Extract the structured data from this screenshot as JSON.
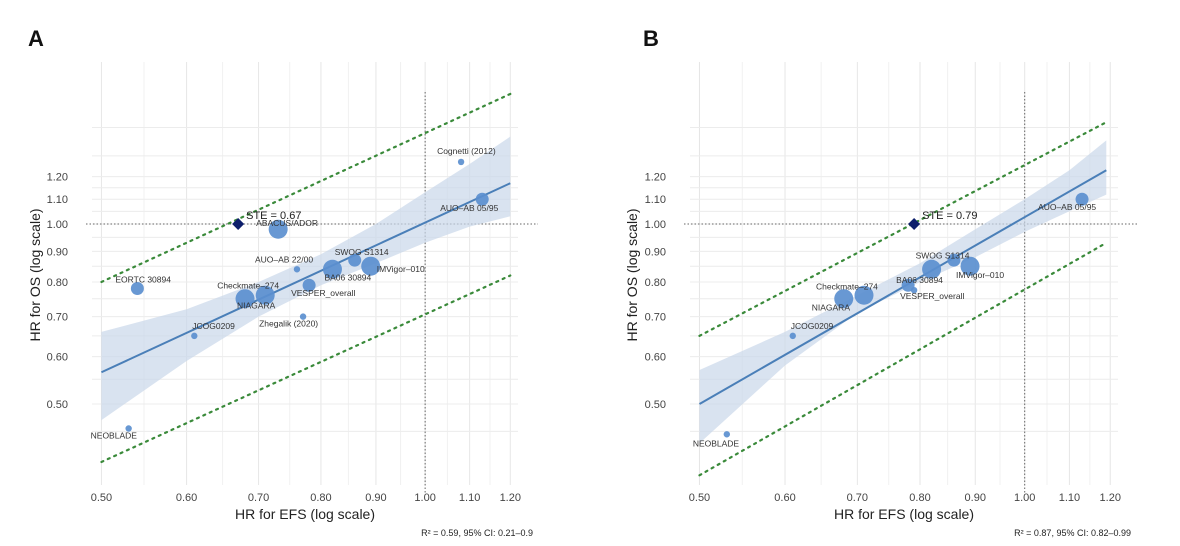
{
  "panels": [
    {
      "letter": "A",
      "caption": "R² = 0.59, 95% CI: 0.21–0.9"
    },
    {
      "letter": "B",
      "caption": "R² = 0.87, 95% CI: 0.82–0.99"
    }
  ],
  "chart_data": [
    {
      "type": "scatter",
      "panel": "A",
      "title": "",
      "xlabel": "HR for EFS (log scale)",
      "ylabel": "HR for OS (log scale)",
      "x_scale": "log",
      "y_scale": "log",
      "xlim": [
        0.49,
        1.22
      ],
      "ylim": [
        0.42,
        1.55
      ],
      "x_ticks": [
        "0.50",
        "0.60",
        "0.70",
        "0.80",
        "0.90",
        "1.00",
        "1.10",
        "1.20"
      ],
      "y_ticks": [
        "0.50",
        "0.60",
        "0.70",
        "0.80",
        "0.90",
        "1.00",
        "1.10",
        "1.20"
      ],
      "grid": true,
      "reference_lines": {
        "x": 1.0,
        "y": 1.0
      },
      "points": [
        {
          "label": "EORTC 30894",
          "x": 0.54,
          "y": 0.78,
          "size": 2
        },
        {
          "label": "JCOG0209",
          "x": 0.61,
          "y": 0.65,
          "size": 1
        },
        {
          "label": "NEOBLADE",
          "x": 0.53,
          "y": 0.455,
          "size": 1
        },
        {
          "label": "NIAGARA",
          "x": 0.68,
          "y": 0.75,
          "size": 3
        },
        {
          "label": "Checkmate–274",
          "x": 0.71,
          "y": 0.76,
          "size": 3
        },
        {
          "label": "ABACUS/ADOR",
          "x": 0.73,
          "y": 0.98,
          "size": 3
        },
        {
          "label": "AUO–AB 22/00",
          "x": 0.76,
          "y": 0.84,
          "size": 1
        },
        {
          "label": "Zhegalik (2020)",
          "x": 0.77,
          "y": 0.7,
          "size": 1
        },
        {
          "label": "VESPER_overall",
          "x": 0.78,
          "y": 0.79,
          "size": 2
        },
        {
          "label": "BA06 30894",
          "x": 0.82,
          "y": 0.84,
          "size": 3
        },
        {
          "label": "SWOG S1314",
          "x": 0.86,
          "y": 0.87,
          "size": 2
        },
        {
          "label": "IMVigor–010",
          "x": 0.89,
          "y": 0.85,
          "size": 3
        },
        {
          "label": "Cognetti (2012)",
          "x": 1.08,
          "y": 1.27,
          "size": 1
        },
        {
          "label": "AUO–AB 05/95",
          "x": 1.13,
          "y": 1.1,
          "size": 2
        }
      ],
      "ste": {
        "label": "STE = 0.67",
        "x": 0.67,
        "y": 1.0
      },
      "regression": {
        "line": [
          [
            0.5,
            0.565
          ],
          [
            1.2,
            1.17
          ]
        ],
        "ci_upper": [
          [
            0.5,
            0.66
          ],
          [
            0.6,
            0.72
          ],
          [
            0.7,
            0.8
          ],
          [
            0.8,
            0.89
          ],
          [
            0.9,
            1.0
          ],
          [
            1.0,
            1.13
          ],
          [
            1.1,
            1.26
          ],
          [
            1.2,
            1.4
          ]
        ],
        "ci_lower": [
          [
            0.5,
            0.47
          ],
          [
            0.6,
            0.59
          ],
          [
            0.7,
            0.7
          ],
          [
            0.8,
            0.79
          ],
          [
            0.9,
            0.86
          ],
          [
            1.0,
            0.93
          ],
          [
            1.1,
            0.99
          ],
          [
            1.2,
            1.03
          ]
        ],
        "pi_upper": [
          [
            0.5,
            0.8
          ],
          [
            1.2,
            1.65
          ]
        ],
        "pi_lower": [
          [
            0.5,
            0.4
          ],
          [
            1.2,
            0.82
          ]
        ]
      },
      "caption": "R² = 0.59, 95% CI: 0.21–0.9"
    },
    {
      "type": "scatter",
      "panel": "B",
      "title": "",
      "xlabel": "HR for EFS (log scale)",
      "ylabel": "HR for OS (log scale)",
      "x_scale": "log",
      "y_scale": "log",
      "xlim": [
        0.49,
        1.22
      ],
      "ylim": [
        0.42,
        1.55
      ],
      "x_ticks": [
        "0.50",
        "0.60",
        "0.70",
        "0.80",
        "0.90",
        "1.00",
        "1.10",
        "1.20"
      ],
      "y_ticks": [
        "0.50",
        "0.60",
        "0.70",
        "0.80",
        "0.90",
        "1.00",
        "1.10",
        "1.20"
      ],
      "grid": true,
      "reference_lines": {
        "x": 1.0,
        "y": 1.0
      },
      "points": [
        {
          "label": "JCOG0209",
          "x": 0.61,
          "y": 0.65,
          "size": 1
        },
        {
          "label": "NEOBLADE",
          "x": 0.53,
          "y": 0.445,
          "size": 1
        },
        {
          "label": "NIAGARA",
          "x": 0.68,
          "y": 0.75,
          "size": 3
        },
        {
          "label": "Checkmate–274",
          "x": 0.71,
          "y": 0.76,
          "size": 3
        },
        {
          "label": "BA06 30894",
          "x": 0.78,
          "y": 0.79,
          "size": 2
        },
        {
          "label": "VESPER_overall",
          "x": 0.79,
          "y": 0.775,
          "size": 1
        },
        {
          "label": "SWOG S1314",
          "x": 0.82,
          "y": 0.84,
          "size": 3
        },
        {
          "label": "IMVigor–010",
          "x": 0.89,
          "y": 0.85,
          "size": 3
        },
        {
          "label": "",
          "x": 0.86,
          "y": 0.87,
          "size": 2
        },
        {
          "label": "AUO–AB 05/95",
          "x": 1.13,
          "y": 1.1,
          "size": 2
        }
      ],
      "ste": {
        "label": "STE = 0.79",
        "x": 0.79,
        "y": 1.0
      },
      "regression": {
        "line": [
          [
            0.5,
            0.5
          ],
          [
            1.19,
            1.23
          ]
        ],
        "ci_upper": [
          [
            0.5,
            0.57
          ],
          [
            0.6,
            0.66
          ],
          [
            0.7,
            0.76
          ],
          [
            0.8,
            0.86
          ],
          [
            0.9,
            0.98
          ],
          [
            1.0,
            1.1
          ],
          [
            1.1,
            1.23
          ],
          [
            1.19,
            1.38
          ]
        ],
        "ci_lower": [
          [
            0.5,
            0.43
          ],
          [
            0.6,
            0.58
          ],
          [
            0.7,
            0.71
          ],
          [
            0.8,
            0.8
          ],
          [
            0.9,
            0.88
          ],
          [
            1.0,
            0.97
          ],
          [
            1.1,
            1.05
          ],
          [
            1.19,
            1.12
          ]
        ],
        "pi_upper": [
          [
            0.5,
            0.65
          ],
          [
            1.19,
            1.48
          ]
        ],
        "pi_lower": [
          [
            0.5,
            0.38
          ],
          [
            1.19,
            0.93
          ]
        ]
      },
      "caption": "R² = 0.87, 95% CI: 0.82–0.99"
    }
  ]
}
